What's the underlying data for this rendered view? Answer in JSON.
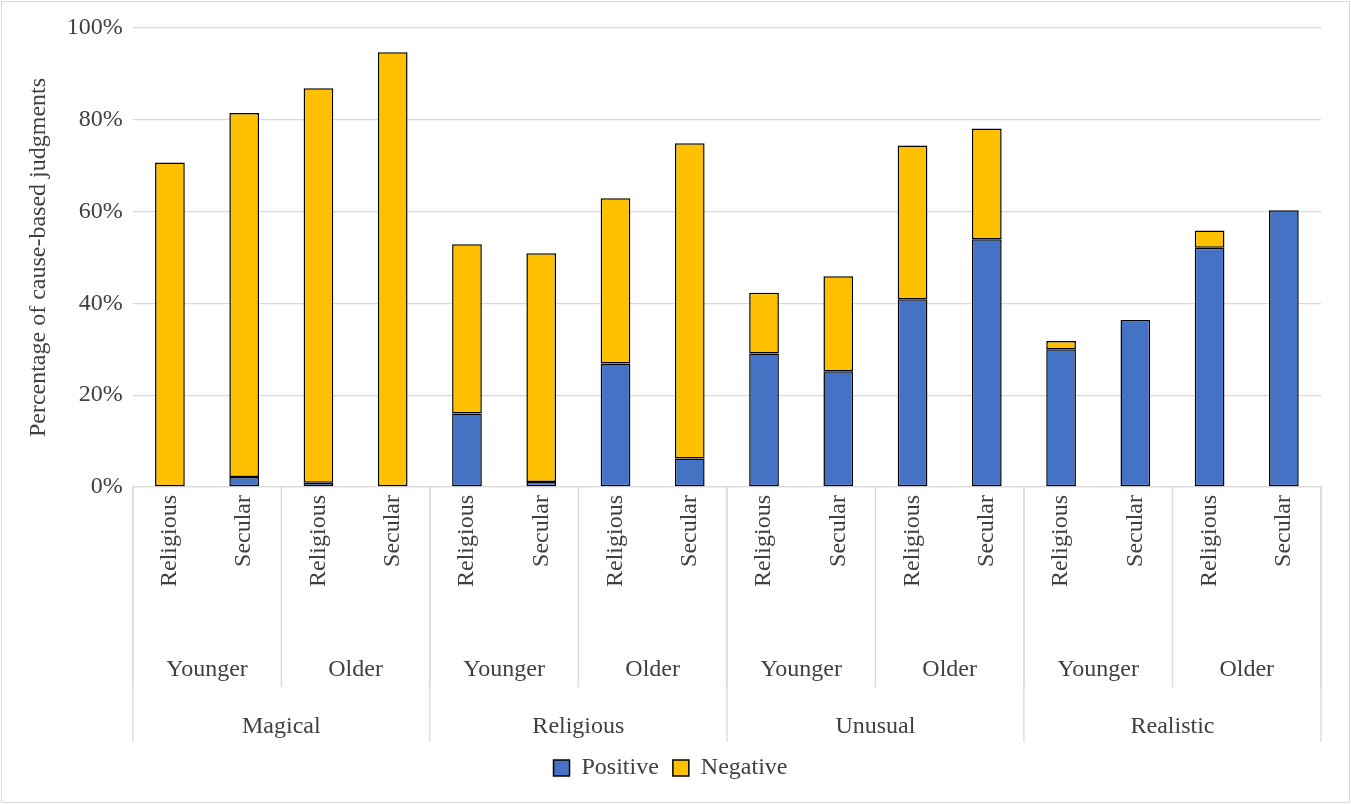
{
  "chart_data": {
    "type": "bar",
    "stacked": true,
    "categories": [
      "Religious",
      "Secular",
      "Religious",
      "Secular",
      "Religious",
      "Secular",
      "Religious",
      "Secular",
      "Religious",
      "Secular",
      "Religious",
      "Secular",
      "Religious",
      "Secular",
      "Religious",
      "Secular"
    ],
    "series": [
      {
        "name": "Positive",
        "color": "#4472c4",
        "values": [
          0,
          2.2,
          0.9,
          0,
          16.0,
          1.1,
          26.9,
          6.2,
          29.1,
          25.2,
          40.9,
          54.0,
          30.0,
          36.4,
          52.1,
          60.3
        ]
      },
      {
        "name": "Negative",
        "color": "#ffc000",
        "values": [
          70.7,
          79.3,
          86.0,
          94.7,
          36.9,
          49.8,
          36.0,
          68.7,
          13.2,
          20.7,
          33.5,
          24.1,
          1.8,
          0,
          3.8,
          0
        ]
      }
    ],
    "ylim": [
      0,
      100
    ],
    "yticks": [
      {
        "value": 0,
        "label": "0%"
      },
      {
        "value": 20,
        "label": "20%"
      },
      {
        "value": 40,
        "label": "40%"
      },
      {
        "value": 60,
        "label": "60%"
      },
      {
        "value": 80,
        "label": "80%"
      },
      {
        "value": 100,
        "label": "100%"
      }
    ],
    "ylabel": "Percentage of cause-based judgments",
    "grid": "y",
    "legend": "bottom",
    "annotations": [
      "Younger",
      "Older",
      "Younger",
      "Older",
      "Younger",
      "Older",
      "Younger",
      "Older",
      "Magical",
      "Religious",
      "Unusual",
      "Realistic"
    ]
  }
}
